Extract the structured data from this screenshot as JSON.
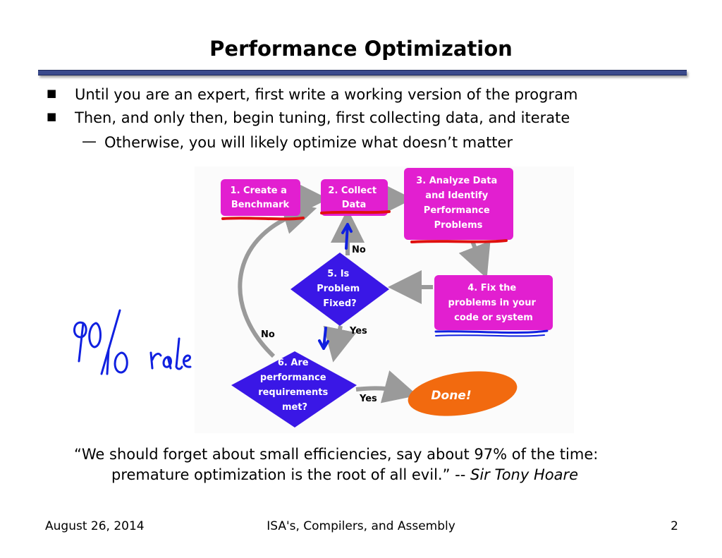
{
  "slide": {
    "title": "Performance Optimization",
    "bullets": [
      "Until you are an expert, first write a working version of the program",
      "Then, and only then, begin tuning, first collecting data, and iterate"
    ],
    "sub_bullet": "Otherwise, you will likely optimize what doesn’t matter",
    "quote": {
      "line1": "“We should forget about small efficiencies, say about 97% of the time:",
      "line2": "premature optimization is the root of all evil.” --",
      "author": "Sir Tony Hoare"
    },
    "footer": {
      "date": "August 26, 2014",
      "course": "ISA's, Compilers, and Assembly",
      "page": "2"
    }
  },
  "flowchart": {
    "steps": {
      "s1": [
        "1. Create a",
        "Benchmark"
      ],
      "s2": [
        "2. Collect",
        "Data"
      ],
      "s3": [
        "3. Analyze Data",
        "and Identify",
        "Performance",
        "Problems"
      ],
      "s4": [
        "4. Fix the",
        "problems in your",
        "code or system"
      ],
      "s5": [
        "5. Is",
        "Problem",
        "Fixed?"
      ],
      "s6": [
        "6. Are",
        "performance",
        "requirements",
        "met?"
      ],
      "done": "Done!"
    },
    "edge_labels": {
      "no_up": "No",
      "yes_down": "Yes",
      "no_back": "No",
      "yes_done": "Yes"
    },
    "colors": {
      "box": "#e21fd0",
      "diamond": "#3a17e6",
      "done": "#f26a0f",
      "arrow": "#9a9a9a"
    }
  },
  "annotation": {
    "handwriting": "90/10 rule",
    "ink_red": "#e01010",
    "ink_blue": "#1020e0"
  }
}
